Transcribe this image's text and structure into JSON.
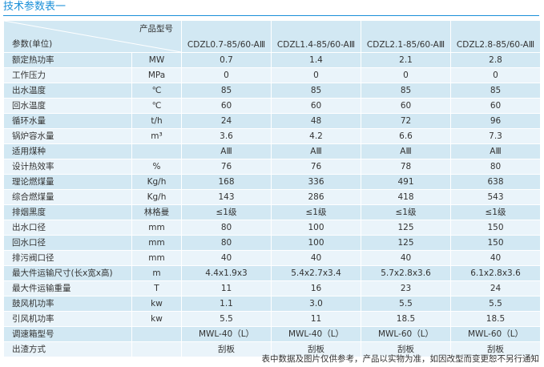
{
  "title": "技术参数表一",
  "header": {
    "param_label": "参数(单位)",
    "model_label": "产品型号",
    "models": [
      "CDZL0.7-85/60-AⅢ",
      "CDZL1.4-85/60-AⅢ",
      "CDZL2.1-85/60-AⅢ",
      "CDZL2.8-85/60-AⅢ"
    ]
  },
  "rows": [
    {
      "param": "额定热功率",
      "unit": "MW",
      "values": [
        "0.7",
        "1.4",
        "2.1",
        "2.8"
      ]
    },
    {
      "param": "工作压力",
      "unit": "MPa",
      "values": [
        "0",
        "0",
        "0",
        "0"
      ]
    },
    {
      "param": "出水温度",
      "unit": "℃",
      "values": [
        "85",
        "85",
        "85",
        "85"
      ]
    },
    {
      "param": "回水温度",
      "unit": "℃",
      "values": [
        "60",
        "60",
        "60",
        "60"
      ]
    },
    {
      "param": "循环水量",
      "unit": "t/h",
      "values": [
        "24",
        "48",
        "72",
        "96"
      ]
    },
    {
      "param": "锅炉容水量",
      "unit": "m³",
      "values": [
        "3.6",
        "4.2",
        "6.6",
        "7.3"
      ]
    },
    {
      "param": "适用煤种",
      "unit": "",
      "values": [
        "AⅢ",
        "AⅢ",
        "AⅢ",
        "AⅢ"
      ]
    },
    {
      "param": "设计热效率",
      "unit": "%",
      "values": [
        "76",
        "76",
        "78",
        "80"
      ]
    },
    {
      "param": "理论燃煤量",
      "unit": "Kg/h",
      "values": [
        "168",
        "336",
        "491",
        "638"
      ]
    },
    {
      "param": "综合燃煤量",
      "unit": "Kg/h",
      "values": [
        "143",
        "286",
        "418",
        "543"
      ]
    },
    {
      "param": "排烟黑度",
      "unit": "林格曼",
      "values": [
        "≤1级",
        "≤1级",
        "≤1级",
        "≤1级"
      ]
    },
    {
      "param": "出水口径",
      "unit": "mm",
      "values": [
        "80",
        "100",
        "125",
        "150"
      ]
    },
    {
      "param": "回水口径",
      "unit": "mm",
      "values": [
        "80",
        "100",
        "125",
        "150"
      ]
    },
    {
      "param": "排污阀口径",
      "unit": "mm",
      "values": [
        "40",
        "40",
        "40",
        "40"
      ]
    },
    {
      "param": "最大件运输尺寸(长x宽x高)",
      "unit": "m",
      "values": [
        "4.4x1.9x3",
        "5.4x2.7x3.4",
        "5.7x2.8x3.6",
        "6.1x2.8x3.6"
      ]
    },
    {
      "param": "最大件运输重量",
      "unit": "T",
      "values": [
        "11",
        "16",
        "23",
        "24"
      ]
    },
    {
      "param": "鼓风机功率",
      "unit": "kw",
      "values": [
        "1.1",
        "3.0",
        "5.5",
        "5.5"
      ]
    },
    {
      "param": "引风机功率",
      "unit": "kw",
      "values": [
        "5.5",
        "11",
        "18.5",
        "18.5"
      ]
    },
    {
      "param": "调速箱型号",
      "unit": "",
      "values": [
        "MWL-40（L）",
        "MWL-40（L）",
        "MWL-60（L）",
        "MWL-60（L）"
      ]
    },
    {
      "param": "出渣方式",
      "unit": "",
      "values": [
        "刮板",
        "刮板",
        "刮板",
        "刮板"
      ]
    }
  ],
  "footnote": "表中数据及图片仅供参考，产品以实物为准，如因改型而变更恕不另行通知"
}
